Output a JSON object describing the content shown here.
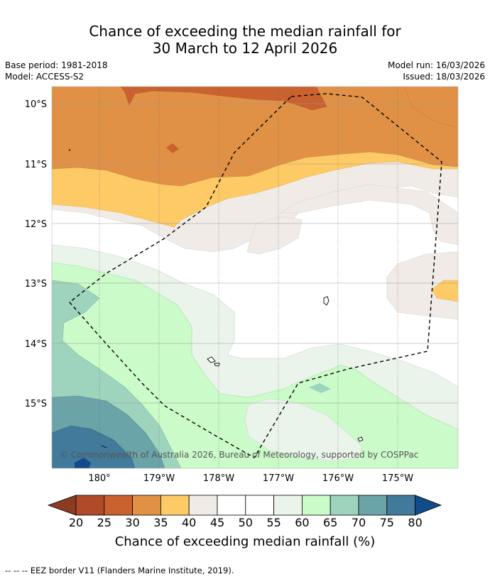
{
  "title": {
    "line1": "Chance of exceeding the median rainfall for",
    "line2": "30 March to 12 April 2026"
  },
  "meta": {
    "base_period": "Base period: 1981-2018",
    "model": "Model: ACCESS-S2",
    "model_run": "Model run: 16/03/2026",
    "issued": "Issued: 18/03/2026"
  },
  "map": {
    "lat_labels": [
      "10°S",
      "11°S",
      "12°S",
      "13°S",
      "14°S",
      "15°S"
    ],
    "lon_labels": [
      "180°",
      "179°W",
      "178°W",
      "177°W",
      "176°W",
      "175°W"
    ],
    "copyright": "© Commonwealth of Australia 2026, Bureau of Meteorology, supported by COSPPac"
  },
  "colorbar": {
    "ticks": [
      "20",
      "25",
      "30",
      "35",
      "40",
      "45",
      "50",
      "55",
      "60",
      "65",
      "70",
      "75",
      "80"
    ],
    "colors": [
      "#8c3a22",
      "#b04a28",
      "#c9622f",
      "#e09146",
      "#fdca66",
      "#f0ebe6",
      "#ffffff",
      "#ffffff",
      "#eaf4ea",
      "#cbfbc9",
      "#9ed3bd",
      "#6aa3a8",
      "#417a9b",
      "#124b8a"
    ],
    "label": "Chance of exceeding median rainfall (%)"
  },
  "footer": "--  --  -- EEZ border V11 (Flanders Marine Institute, 2019)."
}
